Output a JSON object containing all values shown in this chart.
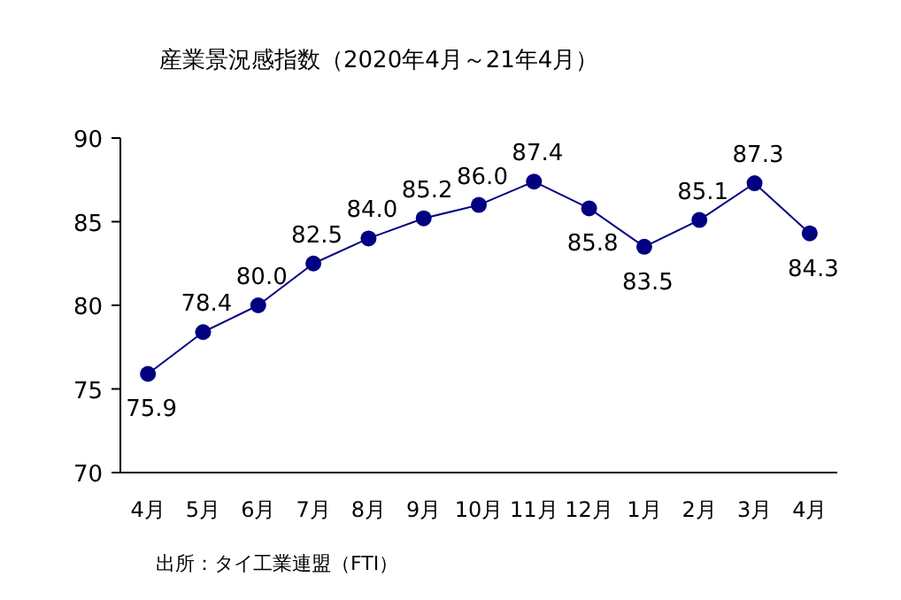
{
  "chart_data": {
    "type": "line",
    "title": "産業景況感指数（2020年4月～21年4月）",
    "categories": [
      "4月",
      "5月",
      "6月",
      "7月",
      "8月",
      "9月",
      "10月",
      "11月",
      "12月",
      "1月",
      "2月",
      "3月",
      "4月"
    ],
    "values": [
      75.9,
      78.4,
      80.0,
      82.5,
      84.0,
      85.2,
      86.0,
      87.4,
      85.8,
      83.5,
      85.1,
      87.3,
      84.3
    ],
    "value_labels": [
      "75.9",
      "78.4",
      "80.0",
      "82.5",
      "84.0",
      "85.2",
      "86.0",
      "87.4",
      "85.8",
      "83.5",
      "85.1",
      "87.3",
      "84.3"
    ],
    "color": "#000080",
    "marker": "circle",
    "line_style": "solid",
    "ylim": [
      70,
      90
    ],
    "yticks": [
      70,
      75,
      80,
      85,
      90
    ],
    "grid": false,
    "annotations": [
      "出所：タイ工業連盟（FTI）"
    ]
  }
}
